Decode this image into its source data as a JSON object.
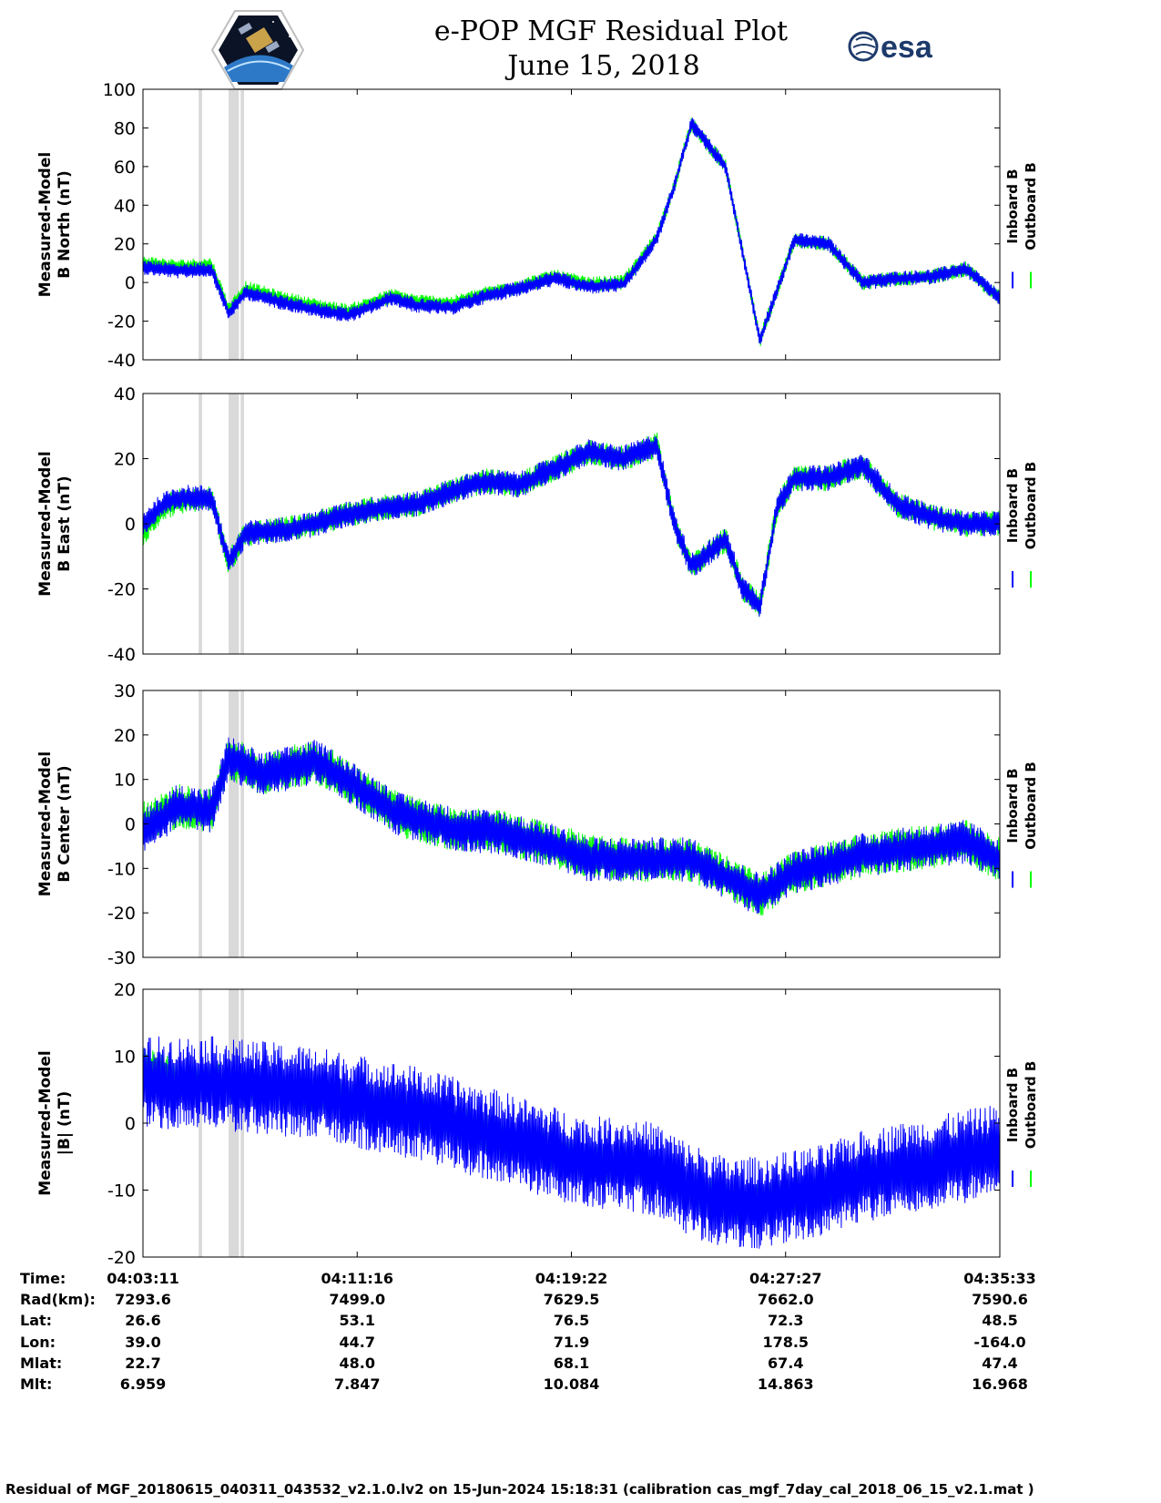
{
  "title_line1": "e-POP MGF Residual Plot",
  "title_line2": "June 15, 2018",
  "logos": {
    "left": "cassiope-mission-emblem",
    "right": "esa",
    "right_text": "esa",
    "esa_color": "#1d3a6b"
  },
  "colors": {
    "inboard": "#0000ff",
    "outboard": "#00ff00",
    "flag_band": "#d9d9d9"
  },
  "chart_data": [
    {
      "type": "line",
      "ylabel_line1": "Measured-Model",
      "ylabel_line2": "B North (nT)",
      "ylim": [
        -40,
        100
      ],
      "yticks": [
        "100",
        "80",
        "60",
        "40",
        "20",
        "0",
        "-20",
        "-40"
      ],
      "grid": false,
      "legend_placement": "right",
      "series": [
        {
          "name": "Inboard B",
          "x": [
            0,
            0.04,
            0.08,
            0.1,
            0.12,
            0.16,
            0.2,
            0.24,
            0.29,
            0.32,
            0.36,
            0.4,
            0.44,
            0.48,
            0.52,
            0.56,
            0.58,
            0.6,
            0.62,
            0.64,
            0.68,
            0.72,
            0.76,
            0.8,
            0.84,
            0.88,
            0.92,
            0.96,
            1.0
          ],
          "values": [
            8,
            6,
            7,
            -16,
            -5,
            -10,
            -14,
            -17,
            -8,
            -12,
            -13,
            -7,
            -3,
            2,
            -2,
            -1,
            10,
            23,
            50,
            82,
            60,
            -30,
            22,
            20,
            0,
            2,
            3,
            7,
            -8
          ],
          "amplitude": 4
        },
        {
          "name": "Outboard B",
          "x": [
            0,
            0.04,
            0.08,
            0.1,
            0.12,
            0.16,
            0.2,
            0.24,
            0.29,
            0.32,
            0.36,
            0.4,
            0.44,
            0.48,
            0.52,
            0.56,
            0.58,
            0.6,
            0.62,
            0.64,
            0.68,
            0.72,
            0.76,
            0.8,
            0.84,
            0.88,
            0.92,
            0.96,
            1.0
          ],
          "values": [
            10,
            8,
            9,
            -14,
            -3,
            -8,
            -12,
            -15,
            -7,
            -10,
            -11,
            -6,
            -2,
            3,
            -1,
            0,
            11,
            24,
            50,
            82,
            60,
            -30,
            22,
            20,
            0,
            2,
            3,
            7,
            -8
          ],
          "amplitude": 4
        }
      ]
    },
    {
      "type": "line",
      "ylabel_line1": "Measured-Model",
      "ylabel_line2": "B East (nT)",
      "ylim": [
        -40,
        40
      ],
      "yticks": [
        "40",
        "20",
        "0",
        "-20",
        "-40"
      ],
      "grid": false,
      "legend_placement": "right",
      "series": [
        {
          "name": "Inboard B",
          "x": [
            0,
            0.02,
            0.04,
            0.08,
            0.1,
            0.12,
            0.16,
            0.2,
            0.24,
            0.28,
            0.32,
            0.36,
            0.4,
            0.44,
            0.48,
            0.52,
            0.56,
            0.6,
            0.62,
            0.64,
            0.68,
            0.7,
            0.72,
            0.74,
            0.76,
            0.8,
            0.84,
            0.86,
            0.88,
            0.92,
            0.96,
            1.0
          ],
          "values": [
            0,
            5,
            8,
            8,
            -12,
            -3,
            -2,
            0,
            3,
            5,
            6,
            10,
            13,
            12,
            17,
            22,
            20,
            24,
            0,
            -13,
            -5,
            -20,
            -25,
            5,
            14,
            14,
            18,
            12,
            6,
            2,
            0,
            0
          ],
          "amplitude": 4
        },
        {
          "name": "Outboard B",
          "x": [
            0,
            0.02,
            0.04,
            0.08,
            0.1,
            0.12,
            0.16,
            0.2,
            0.24,
            0.28,
            0.32,
            0.36,
            0.4,
            0.44,
            0.48,
            0.52,
            0.56,
            0.6,
            0.62,
            0.64,
            0.68,
            0.7,
            0.72,
            0.74,
            0.76,
            0.8,
            0.84,
            0.86,
            0.88,
            0.92,
            0.96,
            1.0
          ],
          "values": [
            -3,
            4,
            7,
            8,
            -12,
            -3,
            -2,
            0,
            3,
            5,
            6,
            10,
            13,
            12,
            17,
            22,
            20,
            24,
            0,
            -13,
            -5,
            -20,
            -25,
            5,
            14,
            14,
            18,
            12,
            6,
            2,
            0,
            0
          ],
          "amplitude": 4
        }
      ]
    },
    {
      "type": "line",
      "ylabel_line1": "Measured-Model",
      "ylabel_line2": "B Center (nT)",
      "ylim": [
        -30,
        30
      ],
      "yticks": [
        "30",
        "20",
        "10",
        "0",
        "-10",
        "-20",
        "-30"
      ],
      "grid": false,
      "legend_placement": "right",
      "series": [
        {
          "name": "Inboard B",
          "x": [
            0,
            0.04,
            0.08,
            0.1,
            0.14,
            0.2,
            0.22,
            0.26,
            0.3,
            0.36,
            0.42,
            0.48,
            0.52,
            0.56,
            0.6,
            0.64,
            0.68,
            0.72,
            0.76,
            0.8,
            0.84,
            0.88,
            0.92,
            0.96,
            1.0
          ],
          "values": [
            -2,
            4,
            3,
            15,
            11,
            14,
            12,
            7,
            2,
            -1,
            -2,
            -5,
            -8,
            -8,
            -8,
            -8,
            -12,
            -16,
            -11,
            -9,
            -7,
            -6,
            -5,
            -4,
            -8
          ],
          "amplitude": 5
        },
        {
          "name": "Outboard B",
          "x": [
            0,
            0.04,
            0.08,
            0.1,
            0.14,
            0.2,
            0.22,
            0.26,
            0.3,
            0.36,
            0.42,
            0.48,
            0.52,
            0.56,
            0.6,
            0.64,
            0.68,
            0.72,
            0.76,
            0.8,
            0.84,
            0.88,
            0.92,
            0.96,
            1.0
          ],
          "values": [
            0,
            4,
            3,
            15,
            11,
            14,
            12,
            7,
            2,
            -1,
            -2,
            -5,
            -7,
            -8,
            -8,
            -8,
            -12,
            -16,
            -11,
            -9,
            -7,
            -6,
            -5,
            -4,
            -8
          ],
          "amplitude": 5
        }
      ]
    },
    {
      "type": "line",
      "ylabel_line1": "Measured-Model",
      "ylabel_line2": "|B| (nT)",
      "ylim": [
        -20,
        20
      ],
      "yticks": [
        "20",
        "10",
        "0",
        "-10",
        "-20"
      ],
      "grid": false,
      "legend_placement": "right",
      "series": [
        {
          "name": "Inboard B",
          "x": [
            0,
            0.04,
            0.08,
            0.12,
            0.16,
            0.2,
            0.24,
            0.28,
            0.32,
            0.36,
            0.4,
            0.44,
            0.48,
            0.52,
            0.56,
            0.6,
            0.64,
            0.68,
            0.72,
            0.76,
            0.8,
            0.84,
            0.88,
            0.92,
            0.96,
            1.0
          ],
          "values": [
            6,
            6,
            6,
            5.5,
            5,
            4.5,
            3.5,
            2.5,
            1.5,
            0,
            -1.5,
            -3,
            -4.5,
            -6,
            -6,
            -7,
            -10,
            -12,
            -12,
            -11,
            -10,
            -8,
            -7,
            -6,
            -5,
            -4
          ],
          "amplitude": 7
        },
        {
          "name": "Outboard B",
          "x": [
            0,
            0.02,
            0.04,
            0.08,
            0.12,
            0.16,
            0.2,
            0.24,
            0.28,
            0.32,
            0.36,
            0.4,
            0.44,
            0.48,
            0.52,
            0.56,
            0.6,
            0.64,
            0.68,
            0.72,
            0.76,
            0.8,
            0.84,
            0.88,
            0.92,
            0.96,
            1.0
          ],
          "values": [
            8,
            8,
            6,
            6,
            5.5,
            5,
            4.5,
            3.5,
            2.5,
            1.5,
            0,
            -1.5,
            -3,
            -4.5,
            -6,
            -6,
            -7,
            -10,
            -12,
            -12,
            -11,
            -10,
            -8,
            -7,
            -6,
            -5,
            -4
          ],
          "amplitude": 3
        }
      ]
    }
  ],
  "flag_intervals": [
    [
      0.065,
      0.069
    ],
    [
      0.1,
      0.112
    ],
    [
      0.114,
      0.118
    ]
  ],
  "legend": [
    "Inboard B",
    "Outboard B"
  ],
  "orbit_table": {
    "row_labels": [
      "Time:",
      "Rad(km):",
      "Lat:",
      "Lon:",
      "Mlat:",
      "Mlt:"
    ],
    "columns": [
      [
        "04:03:11",
        "7293.6",
        "26.6",
        "39.0",
        "22.7",
        "6.959"
      ],
      [
        "04:11:16",
        "7499.0",
        "53.1",
        "44.7",
        "48.0",
        "7.847"
      ],
      [
        "04:19:22",
        "7629.5",
        "76.5",
        "71.9",
        "68.1",
        "10.084"
      ],
      [
        "04:27:27",
        "7662.0",
        "72.3",
        "178.5",
        "67.4",
        "14.863"
      ],
      [
        "04:35:33",
        "7590.6",
        "48.5",
        "-164.0",
        "47.4",
        "16.968"
      ]
    ]
  },
  "footer": "Residual of MGF_20180615_040311_043532_v2.1.0.lv2 on 15-Jun-2024 15:18:31 (calibration cas_mgf_7day_cal_2018_06_15_v2.1.mat )"
}
